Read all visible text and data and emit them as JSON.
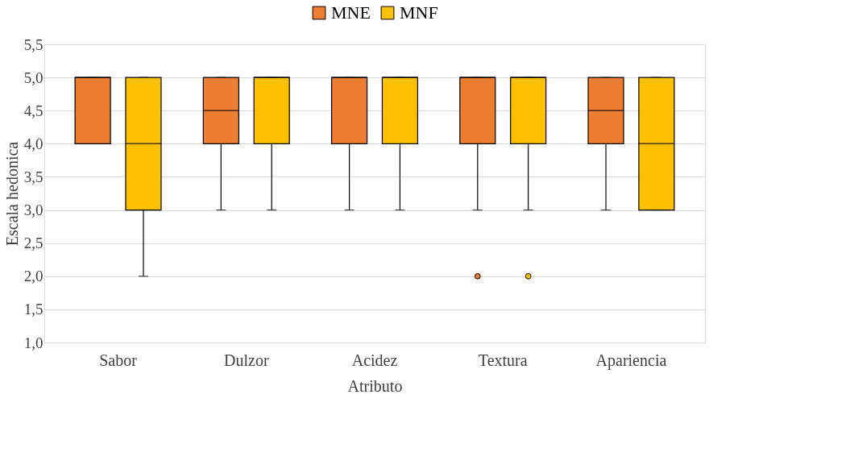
{
  "chart_data": {
    "type": "box",
    "xlabel": "Atributo",
    "ylabel": "Escala hedonica",
    "categories": [
      "Sabor",
      "Dulzor",
      "Acidez",
      "Textura",
      "Apariencia"
    ],
    "ylim": [
      1.0,
      5.5
    ],
    "yticks": [
      {
        "value": 1.0,
        "label": "1,0"
      },
      {
        "value": 1.5,
        "label": "1,5"
      },
      {
        "value": 2.0,
        "label": "2,0"
      },
      {
        "value": 2.5,
        "label": "2,5"
      },
      {
        "value": 3.0,
        "label": "3,0"
      },
      {
        "value": 3.5,
        "label": "3,5"
      },
      {
        "value": 4.0,
        "label": "4,0"
      },
      {
        "value": 4.5,
        "label": "4,5"
      },
      {
        "value": 5.0,
        "label": "5,0"
      },
      {
        "value": 5.5,
        "label": "5,5"
      }
    ],
    "grid": "y",
    "legend": "top",
    "series": [
      {
        "name": "MNE",
        "color": "#ed7d31",
        "boxes": [
          {
            "low": 4,
            "q1": 4,
            "median": 5,
            "q3": 5,
            "high": 5
          },
          {
            "low": 3,
            "q1": 4,
            "median": 4.5,
            "q3": 5,
            "high": 5
          },
          {
            "low": 3,
            "q1": 4,
            "median": 5,
            "q3": 5,
            "high": 5
          },
          {
            "low": 3,
            "q1": 4,
            "median": 5,
            "q3": 5,
            "high": 5,
            "outliers": [
              2
            ]
          },
          {
            "low": 3,
            "q1": 4,
            "median": 4.5,
            "q3": 5,
            "high": 5
          }
        ]
      },
      {
        "name": "MNF",
        "color": "#ffc000",
        "boxes": [
          {
            "low": 2,
            "q1": 3,
            "median": 4,
            "q3": 5,
            "high": 5
          },
          {
            "low": 3,
            "q1": 4,
            "median": 5,
            "q3": 5,
            "high": 5
          },
          {
            "low": 3,
            "q1": 4,
            "median": 5,
            "q3": 5,
            "high": 5
          },
          {
            "low": 3,
            "q1": 4,
            "median": 5,
            "q3": 5,
            "high": 5,
            "outliers": [
              2
            ]
          },
          {
            "low": 3,
            "q1": 3,
            "median": 4,
            "q3": 5,
            "high": 5
          }
        ]
      }
    ]
  }
}
